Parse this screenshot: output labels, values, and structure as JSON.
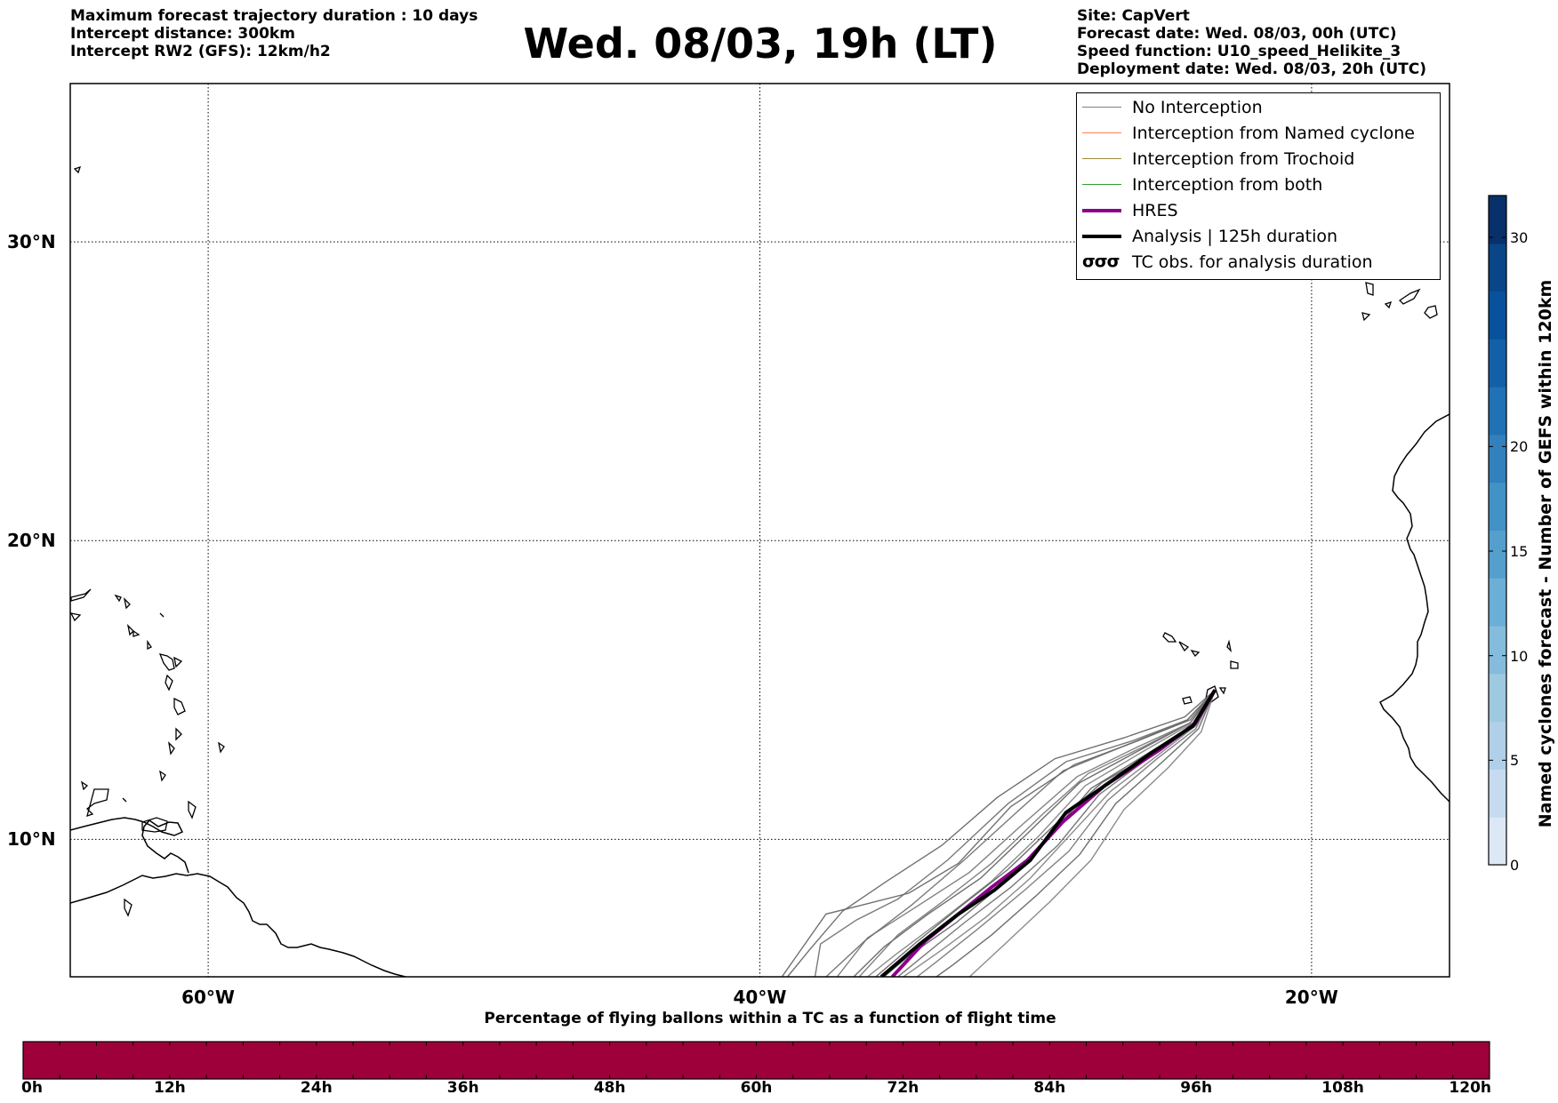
{
  "header_left": [
    "Maximum forecast trajectory duration : 10 days",
    "Intercept distance: 300km",
    "Intercept RW2 (GFS):  12km/h2"
  ],
  "title": "Wed. 08/03, 19h (LT)",
  "header_right": [
    "Site: CapVert",
    "Forecast date: Wed. 08/03, 00h (UTC)",
    "Speed function: U10_speed_Helikite_3",
    "Deployment date: Wed. 08/03, 20h (UTC)"
  ],
  "legend": [
    {
      "label": "No Interception",
      "color": "#808080",
      "width": 1.5
    },
    {
      "label": "Interception from Named cyclone",
      "color": "#ff7f50",
      "width": 1.5
    },
    {
      "label": "Interception from Trochoid",
      "color": "#9c8a3a",
      "width": 1.5
    },
    {
      "label": "Interception from both",
      "color": "#2ca02c",
      "width": 1.5
    },
    {
      "label": "HRES",
      "color": "#8b008b",
      "width": 4
    },
    {
      "label": "Analysis | 125h duration",
      "color": "#000000",
      "width": 4
    },
    {
      "label": "TC obs. for analysis duration",
      "color": "#000000",
      "width": 0,
      "symbol": "σσσ"
    }
  ],
  "colorbar_right": {
    "title": "Named cyclones forecast - Number of GEFS within 120km",
    "min": 0,
    "max": 32,
    "ticks": [
      "0",
      "5",
      "10",
      "15",
      "20",
      "30"
    ],
    "tick_values": [
      0,
      5,
      10,
      15,
      20,
      30
    ],
    "colors": [
      "#dce8f5",
      "#c6dbef",
      "#afd0e8",
      "#9ecae1",
      "#85bbdc",
      "#6baed6",
      "#559fcd",
      "#4292c6",
      "#3281bc",
      "#2171b5",
      "#1460a8",
      "#08519c",
      "#0a4587",
      "#08306b"
    ]
  },
  "colorbar_bottom": {
    "title": "Percentage of flying ballons within a TC as a function of flight time",
    "color": "#9e003a",
    "ticks": [
      "0h",
      "12h",
      "24h",
      "36h",
      "48h",
      "60h",
      "72h",
      "84h",
      "96h",
      "108h",
      "120h"
    ]
  },
  "map": {
    "lon_ticks": [
      "60°W",
      "40°W",
      "20°W"
    ],
    "lat_ticks": [
      "30°N",
      "20°N",
      "10°N"
    ],
    "lon_values": [
      -60,
      -40,
      -20
    ],
    "lat_values": [
      30,
      20,
      10
    ],
    "lon_range": [
      -65,
      -15
    ],
    "lat_range": [
      5.4,
      35.3
    ],
    "grid": true
  },
  "chart_data": {
    "type": "line",
    "title": "Wed. 08/03, 19h (LT)",
    "xlabel": "",
    "ylabel": "",
    "xlim": [
      -65,
      -15
    ],
    "ylim": [
      5.4,
      35.3
    ],
    "origin": {
      "lon": -23.5,
      "lat": 15.0
    },
    "hres": {
      "name": "HRES",
      "points": [
        [
          -23.5,
          15.0
        ],
        [
          -24.2,
          13.9
        ],
        [
          -25.5,
          13.0
        ],
        [
          -27.5,
          11.8
        ],
        [
          -29.0,
          10.6
        ],
        [
          -30.3,
          9.3
        ],
        [
          -31.6,
          8.4
        ],
        [
          -32.8,
          7.5
        ],
        [
          -34.0,
          6.6
        ],
        [
          -35.0,
          5.6
        ],
        [
          -35.2,
          5.4
        ]
      ]
    },
    "analysis": {
      "name": "Analysis | 125h duration",
      "points": [
        [
          -23.5,
          15.0
        ],
        [
          -24.3,
          13.8
        ],
        [
          -25.8,
          12.9
        ],
        [
          -27.8,
          11.6
        ],
        [
          -28.9,
          10.9
        ],
        [
          -30.2,
          9.3
        ],
        [
          -31.5,
          8.3
        ],
        [
          -32.8,
          7.5
        ],
        [
          -34.2,
          6.5
        ],
        [
          -35.6,
          5.4
        ]
      ]
    },
    "ensemble_no_interception": [
      [
        [
          -23.5,
          15.0
        ],
        [
          -24.4,
          14.0
        ],
        [
          -26.3,
          13.3
        ],
        [
          -28.6,
          12.5
        ],
        [
          -30.9,
          11.1
        ],
        [
          -32.8,
          9.2
        ],
        [
          -34.6,
          8.2
        ],
        [
          -36.3,
          7.8
        ],
        [
          -37.6,
          7.5
        ],
        [
          -39.2,
          5.4
        ]
      ],
      [
        [
          -23.5,
          15.0
        ],
        [
          -24.5,
          14.0
        ],
        [
          -26.5,
          13.3
        ],
        [
          -28.9,
          12.6
        ],
        [
          -31.0,
          11.2
        ],
        [
          -33.2,
          9.3
        ],
        [
          -35.0,
          8.0
        ],
        [
          -36.5,
          7.3
        ],
        [
          -37.8,
          6.5
        ],
        [
          -38.0,
          5.4
        ]
      ],
      [
        [
          -23.5,
          15.0
        ],
        [
          -24.4,
          13.9
        ],
        [
          -26.3,
          13.1
        ],
        [
          -28.5,
          12.1
        ],
        [
          -30.6,
          10.4
        ],
        [
          -32.4,
          8.9
        ],
        [
          -34.4,
          7.7
        ],
        [
          -36.1,
          6.7
        ],
        [
          -37.2,
          5.4
        ]
      ],
      [
        [
          -23.5,
          15.0
        ],
        [
          -24.4,
          13.9
        ],
        [
          -26.2,
          13.0
        ],
        [
          -28.4,
          11.9
        ],
        [
          -30.3,
          10.2
        ],
        [
          -32.0,
          8.7
        ],
        [
          -33.9,
          7.5
        ],
        [
          -35.5,
          6.4
        ],
        [
          -36.6,
          5.4
        ]
      ],
      [
        [
          -23.5,
          15.0
        ],
        [
          -24.3,
          13.9
        ],
        [
          -26.0,
          13.0
        ],
        [
          -28.2,
          11.8
        ],
        [
          -29.9,
          10.1
        ],
        [
          -31.6,
          8.6
        ],
        [
          -33.4,
          7.3
        ],
        [
          -35.0,
          6.2
        ],
        [
          -36.1,
          5.4
        ]
      ],
      [
        [
          -23.5,
          15.0
        ],
        [
          -24.3,
          13.8
        ],
        [
          -25.9,
          12.9
        ],
        [
          -28.0,
          11.7
        ],
        [
          -29.6,
          10.0
        ],
        [
          -31.2,
          8.5
        ],
        [
          -32.9,
          7.2
        ],
        [
          -34.6,
          6.1
        ],
        [
          -35.5,
          5.4
        ]
      ],
      [
        [
          -23.5,
          15.0
        ],
        [
          -24.2,
          13.8
        ],
        [
          -25.8,
          12.8
        ],
        [
          -27.7,
          11.5
        ],
        [
          -29.2,
          9.8
        ],
        [
          -30.9,
          8.4
        ],
        [
          -32.6,
          7.2
        ],
        [
          -34.2,
          6.0
        ],
        [
          -35.0,
          5.4
        ]
      ],
      [
        [
          -23.5,
          15.0
        ],
        [
          -24.2,
          13.7
        ],
        [
          -25.6,
          12.7
        ],
        [
          -27.4,
          11.3
        ],
        [
          -28.8,
          9.6
        ],
        [
          -30.4,
          8.3
        ],
        [
          -32.1,
          7.0
        ],
        [
          -33.6,
          5.9
        ],
        [
          -34.3,
          5.4
        ]
      ],
      [
        [
          -23.5,
          15.0
        ],
        [
          -24.1,
          13.7
        ],
        [
          -25.4,
          12.6
        ],
        [
          -27.1,
          11.2
        ],
        [
          -28.4,
          9.5
        ],
        [
          -30.0,
          8.1
        ],
        [
          -31.6,
          6.8
        ],
        [
          -33.0,
          5.8
        ],
        [
          -33.6,
          5.4
        ]
      ],
      [
        [
          -23.5,
          15.0
        ],
        [
          -24.0,
          13.6
        ],
        [
          -25.2,
          12.4
        ],
        [
          -26.8,
          11.0
        ],
        [
          -28.0,
          9.3
        ],
        [
          -29.5,
          7.9
        ],
        [
          -31.0,
          6.6
        ],
        [
          -32.4,
          5.4
        ]
      ],
      [
        [
          -23.5,
          15.0
        ],
        [
          -24.6,
          14.1
        ],
        [
          -26.8,
          13.4
        ],
        [
          -29.3,
          12.7
        ],
        [
          -31.4,
          11.4
        ],
        [
          -33.4,
          9.8
        ],
        [
          -35.4,
          8.6
        ],
        [
          -37.0,
          7.6
        ],
        [
          -38.2,
          6.3
        ],
        [
          -39.0,
          5.4
        ]
      ],
      [
        [
          -23.5,
          15.0
        ],
        [
          -24.5,
          14.0
        ],
        [
          -26.6,
          13.2
        ],
        [
          -29.0,
          12.3
        ],
        [
          -30.7,
          10.9
        ],
        [
          -32.6,
          9.3
        ],
        [
          -34.5,
          7.8
        ],
        [
          -36.2,
          6.6
        ],
        [
          -37.6,
          5.4
        ]
      ],
      [
        [
          -23.5,
          15.0
        ],
        [
          -24.4,
          13.9
        ],
        [
          -26.1,
          13.1
        ],
        [
          -28.1,
          12.2
        ],
        [
          -29.8,
          10.8
        ],
        [
          -31.6,
          9.2
        ],
        [
          -33.4,
          7.9
        ],
        [
          -35.0,
          6.8
        ],
        [
          -36.4,
          5.4
        ]
      ],
      [
        [
          -23.5,
          15.0
        ],
        [
          -24.3,
          13.8
        ],
        [
          -25.7,
          12.9
        ],
        [
          -27.6,
          11.9
        ],
        [
          -29.3,
          10.5
        ],
        [
          -31.0,
          9.0
        ],
        [
          -32.8,
          7.7
        ],
        [
          -34.4,
          6.5
        ],
        [
          -35.8,
          5.4
        ]
      ],
      [
        [
          -23.5,
          15.0
        ],
        [
          -24.2,
          13.8
        ],
        [
          -25.6,
          12.8
        ],
        [
          -27.3,
          11.6
        ],
        [
          -28.7,
          10.2
        ],
        [
          -30.2,
          8.7
        ],
        [
          -31.8,
          7.4
        ],
        [
          -33.4,
          6.3
        ],
        [
          -34.8,
          5.4
        ]
      ]
    ]
  }
}
